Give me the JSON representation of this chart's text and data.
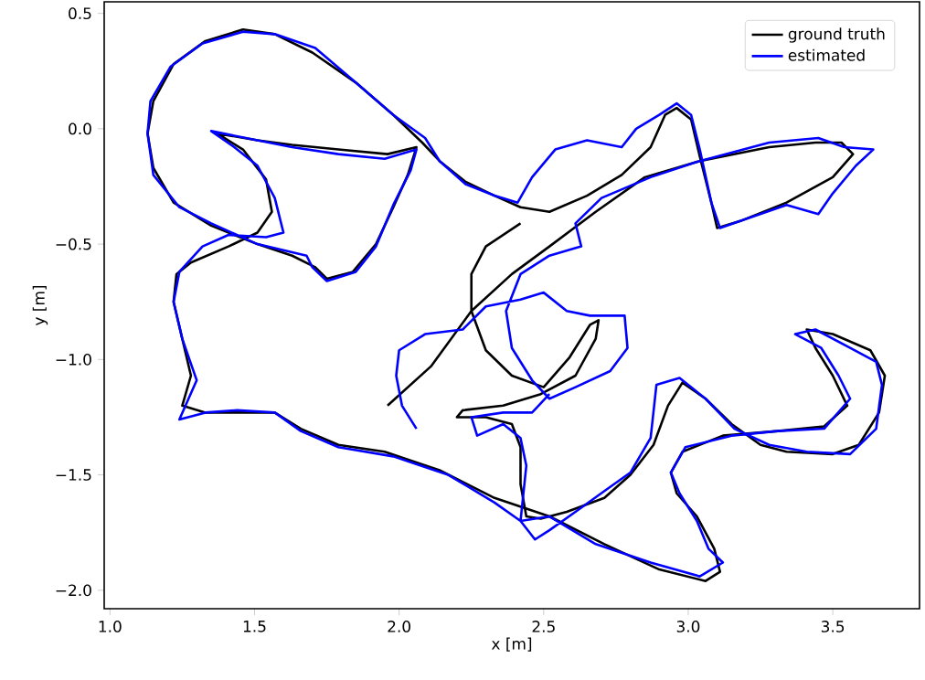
{
  "chart_data": {
    "type": "line",
    "xlabel": "x [m]",
    "ylabel": "y [m]",
    "xlim": [
      0.98,
      3.8
    ],
    "ylim": [
      -2.08,
      0.55
    ],
    "xticks": [
      {
        "value": 1.0,
        "label": "1.0"
      },
      {
        "value": 1.5,
        "label": "1.5"
      },
      {
        "value": 2.0,
        "label": "2.0"
      },
      {
        "value": 2.5,
        "label": "2.5"
      },
      {
        "value": 3.0,
        "label": "3.0"
      },
      {
        "value": 3.5,
        "label": "3.5"
      }
    ],
    "yticks": [
      {
        "value": -2.0,
        "label": "−2.0"
      },
      {
        "value": -1.5,
        "label": "−1.5"
      },
      {
        "value": -1.0,
        "label": "−1.0"
      },
      {
        "value": -0.5,
        "label": "−0.5"
      },
      {
        "value": 0.0,
        "label": "0.0"
      },
      {
        "value": 0.5,
        "label": "0.5"
      }
    ],
    "grid": false,
    "legend": "top right",
    "marker": "none",
    "line_style": "solid",
    "series": [
      {
        "name": "ground truth",
        "color": "#000000",
        "x": [
          1.96,
          2.11,
          2.25,
          2.39,
          2.52,
          2.68,
          2.85,
          3.04,
          3.28,
          3.44,
          3.53,
          3.57,
          3.5,
          3.34,
          3.18,
          3.1,
          3.08,
          3.04,
          3.01,
          2.96,
          2.92,
          2.87,
          2.77,
          2.65,
          2.52,
          2.42,
          2.33,
          2.23,
          2.14,
          2.08,
          1.98,
          1.85,
          1.7,
          1.57,
          1.46,
          1.33,
          1.22,
          1.15,
          1.13,
          1.15,
          1.22,
          1.35,
          1.51,
          1.63,
          1.71,
          1.75,
          1.84,
          1.92,
          1.98,
          2.03,
          2.06,
          1.96,
          1.79,
          1.63,
          1.51,
          1.37,
          1.46,
          1.54,
          1.56,
          1.51,
          1.41,
          1.28,
          1.23,
          1.22,
          1.25,
          1.28,
          1.25,
          1.33,
          1.44,
          1.57,
          1.66,
          1.79,
          1.95,
          2.14,
          2.33,
          2.52,
          2.71,
          2.9,
          3.06,
          3.11,
          3.09,
          3.03,
          2.96,
          2.94,
          2.98,
          3.12,
          3.31,
          3.47,
          3.55,
          3.5,
          3.44,
          3.41,
          3.5,
          3.63,
          3.68,
          3.66,
          3.59,
          3.5,
          3.34,
          3.25,
          3.15,
          3.06,
          2.98,
          2.93,
          2.88,
          2.8,
          2.71,
          2.58,
          2.49,
          2.44,
          2.42,
          2.42,
          2.39,
          2.3,
          2.2,
          2.22,
          2.36,
          2.49,
          2.61,
          2.68,
          2.69,
          2.66,
          2.59,
          2.5,
          2.39,
          2.3,
          2.25,
          2.25,
          2.3,
          2.42
        ],
        "values": [
          -1.2,
          -1.03,
          -0.79,
          -0.63,
          -0.51,
          -0.36,
          -0.21,
          -0.14,
          -0.08,
          -0.06,
          -0.06,
          -0.11,
          -0.21,
          -0.32,
          -0.4,
          -0.43,
          -0.32,
          -0.12,
          0.04,
          0.09,
          0.06,
          -0.08,
          -0.2,
          -0.29,
          -0.36,
          -0.34,
          -0.29,
          -0.23,
          -0.14,
          -0.06,
          0.06,
          0.2,
          0.33,
          0.41,
          0.43,
          0.38,
          0.28,
          0.12,
          -0.02,
          -0.17,
          -0.32,
          -0.42,
          -0.5,
          -0.55,
          -0.6,
          -0.65,
          -0.62,
          -0.5,
          -0.34,
          -0.2,
          -0.08,
          -0.11,
          -0.09,
          -0.07,
          -0.05,
          -0.02,
          -0.09,
          -0.22,
          -0.36,
          -0.45,
          -0.51,
          -0.58,
          -0.63,
          -0.75,
          -0.91,
          -1.07,
          -1.2,
          -1.23,
          -1.23,
          -1.23,
          -1.3,
          -1.37,
          -1.4,
          -1.48,
          -1.6,
          -1.68,
          -1.8,
          -1.91,
          -1.96,
          -1.92,
          -1.82,
          -1.68,
          -1.58,
          -1.49,
          -1.4,
          -1.33,
          -1.31,
          -1.29,
          -1.2,
          -1.07,
          -0.95,
          -0.87,
          -0.89,
          -0.96,
          -1.07,
          -1.23,
          -1.37,
          -1.41,
          -1.4,
          -1.37,
          -1.28,
          -1.17,
          -1.1,
          -1.2,
          -1.37,
          -1.5,
          -1.6,
          -1.66,
          -1.69,
          -1.68,
          -1.54,
          -1.38,
          -1.28,
          -1.25,
          -1.25,
          -1.22,
          -1.2,
          -1.15,
          -1.07,
          -0.91,
          -0.83,
          -0.85,
          -0.99,
          -1.12,
          -1.07,
          -0.96,
          -0.79,
          -0.63,
          -0.51,
          -0.41
        ]
      },
      {
        "name": "estimated",
        "color": "#0000ff",
        "x": [
          2.06,
          2.01,
          1.99,
          2.0,
          2.09,
          2.22,
          2.3,
          2.42,
          2.5,
          2.58,
          2.66,
          2.78,
          2.79,
          2.73,
          2.61,
          2.52,
          2.46,
          2.39,
          2.37,
          2.42,
          2.52,
          2.63,
          2.61,
          2.7,
          2.87,
          3.04,
          3.28,
          3.45,
          3.54,
          3.64,
          3.58,
          3.5,
          3.45,
          3.34,
          3.18,
          3.11,
          3.08,
          3.04,
          3.01,
          2.96,
          2.9,
          2.82,
          2.77,
          2.65,
          2.54,
          2.46,
          2.41,
          2.33,
          2.23,
          2.14,
          2.09,
          1.98,
          1.85,
          1.71,
          1.57,
          1.46,
          1.32,
          1.21,
          1.14,
          1.13,
          1.15,
          1.24,
          1.35,
          1.51,
          1.68,
          1.7,
          1.75,
          1.85,
          1.92,
          1.98,
          2.04,
          2.06,
          1.95,
          1.79,
          1.63,
          1.51,
          1.35,
          1.43,
          1.51,
          1.57,
          1.6,
          1.54,
          1.41,
          1.32,
          1.24,
          1.22,
          1.25,
          1.3,
          1.24,
          1.33,
          1.44,
          1.57,
          1.66,
          1.79,
          1.98,
          2.17,
          2.33,
          2.42,
          2.52,
          2.68,
          2.87,
          3.04,
          3.12,
          3.07,
          3.03,
          2.97,
          2.94,
          2.99,
          3.15,
          3.31,
          3.47,
          3.56,
          3.52,
          3.46,
          3.37,
          3.44,
          3.56,
          3.65,
          3.67,
          3.65,
          3.56,
          3.41,
          3.28,
          3.16,
          3.06,
          2.97,
          2.89,
          2.87,
          2.8,
          2.71,
          2.61,
          2.52,
          2.47,
          2.42,
          2.44,
          2.42,
          2.36,
          2.27,
          2.25,
          2.36,
          2.46,
          2.52
        ],
        "values": [
          -1.3,
          -1.2,
          -1.07,
          -0.96,
          -0.89,
          -0.87,
          -0.77,
          -0.74,
          -0.71,
          -0.79,
          -0.81,
          -0.81,
          -0.95,
          -1.05,
          -1.12,
          -1.17,
          -1.09,
          -0.95,
          -0.79,
          -0.63,
          -0.55,
          -0.51,
          -0.41,
          -0.3,
          -0.21,
          -0.14,
          -0.06,
          -0.04,
          -0.08,
          -0.09,
          -0.16,
          -0.28,
          -0.37,
          -0.33,
          -0.4,
          -0.43,
          -0.32,
          -0.09,
          0.06,
          0.11,
          0.06,
          0.0,
          -0.08,
          -0.05,
          -0.09,
          -0.21,
          -0.32,
          -0.29,
          -0.24,
          -0.14,
          -0.04,
          0.06,
          0.2,
          0.35,
          0.41,
          0.42,
          0.37,
          0.27,
          0.12,
          -0.02,
          -0.2,
          -0.34,
          -0.41,
          -0.5,
          -0.55,
          -0.6,
          -0.66,
          -0.62,
          -0.51,
          -0.33,
          -0.18,
          -0.09,
          -0.13,
          -0.11,
          -0.08,
          -0.05,
          -0.01,
          -0.08,
          -0.16,
          -0.3,
          -0.45,
          -0.47,
          -0.46,
          -0.51,
          -0.62,
          -0.75,
          -0.91,
          -1.09,
          -1.26,
          -1.23,
          -1.22,
          -1.23,
          -1.31,
          -1.38,
          -1.42,
          -1.5,
          -1.62,
          -1.7,
          -1.68,
          -1.8,
          -1.88,
          -1.94,
          -1.88,
          -1.82,
          -1.7,
          -1.58,
          -1.49,
          -1.38,
          -1.33,
          -1.31,
          -1.3,
          -1.17,
          -1.07,
          -0.95,
          -0.89,
          -0.87,
          -0.95,
          -1.01,
          -1.11,
          -1.3,
          -1.41,
          -1.4,
          -1.37,
          -1.3,
          -1.17,
          -1.08,
          -1.11,
          -1.34,
          -1.49,
          -1.57,
          -1.66,
          -1.74,
          -1.78,
          -1.7,
          -1.46,
          -1.34,
          -1.28,
          -1.33,
          -1.25,
          -1.23,
          -1.23,
          -1.15
        ]
      }
    ]
  }
}
